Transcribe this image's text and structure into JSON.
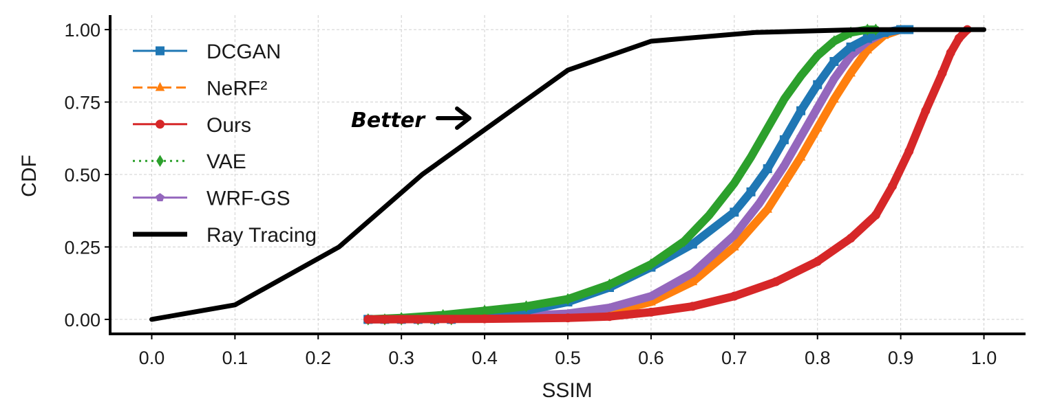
{
  "chart_data": {
    "type": "line",
    "title": "",
    "xlabel": "SSIM",
    "ylabel": "CDF",
    "xlim": [
      -0.05,
      1.05
    ],
    "ylim": [
      -0.05,
      1.05
    ],
    "grid": true,
    "legend_position": "top-left",
    "x_ticks": [
      "0.0",
      "0.1",
      "0.2",
      "0.3",
      "0.4",
      "0.5",
      "0.6",
      "0.7",
      "0.8",
      "0.9",
      "1.0"
    ],
    "y_ticks": [
      "0.00",
      "0.25",
      "0.50",
      "0.75",
      "1.00"
    ],
    "annotation": {
      "text": "Better",
      "x": 0.32,
      "y": 0.7,
      "arrow": "right"
    },
    "series": [
      {
        "name": "DCGAN",
        "color": "#1f77b4",
        "marker": "square",
        "style": "solid",
        "x": [
          0.26,
          0.35,
          0.4,
          0.45,
          0.5,
          0.55,
          0.6,
          0.65,
          0.7,
          0.72,
          0.74,
          0.76,
          0.78,
          0.8,
          0.82,
          0.84,
          0.86,
          0.88,
          0.9,
          0.91
        ],
        "y": [
          0.0,
          0.005,
          0.01,
          0.03,
          0.06,
          0.11,
          0.18,
          0.26,
          0.37,
          0.44,
          0.52,
          0.62,
          0.72,
          0.81,
          0.89,
          0.94,
          0.97,
          0.99,
          1.0,
          1.0
        ]
      },
      {
        "name": "NeRF²",
        "color": "#ff7f0e",
        "marker": "triangle",
        "style": "dashed",
        "x": [
          0.26,
          0.4,
          0.5,
          0.55,
          0.6,
          0.65,
          0.7,
          0.74,
          0.76,
          0.78,
          0.8,
          0.82,
          0.84,
          0.86,
          0.88,
          0.9
        ],
        "y": [
          0.0,
          0.003,
          0.01,
          0.025,
          0.06,
          0.13,
          0.25,
          0.38,
          0.47,
          0.56,
          0.66,
          0.76,
          0.85,
          0.93,
          0.98,
          1.0
        ]
      },
      {
        "name": "Ours",
        "color": "#d62728",
        "marker": "circle",
        "style": "solid",
        "x": [
          0.26,
          0.4,
          0.5,
          0.55,
          0.6,
          0.65,
          0.7,
          0.75,
          0.8,
          0.84,
          0.87,
          0.89,
          0.91,
          0.93,
          0.95,
          0.96,
          0.97,
          0.98
        ],
        "y": [
          0.0,
          0.002,
          0.005,
          0.01,
          0.025,
          0.045,
          0.08,
          0.13,
          0.2,
          0.28,
          0.36,
          0.46,
          0.58,
          0.72,
          0.85,
          0.92,
          0.97,
          1.0
        ]
      },
      {
        "name": "VAE",
        "color": "#2ca02c",
        "marker": "diamond",
        "style": "dotted",
        "x": [
          0.26,
          0.3,
          0.35,
          0.4,
          0.45,
          0.5,
          0.55,
          0.6,
          0.64,
          0.67,
          0.7,
          0.72,
          0.74,
          0.76,
          0.78,
          0.8,
          0.82,
          0.84,
          0.86,
          0.87
        ],
        "y": [
          0.0,
          0.005,
          0.015,
          0.03,
          0.045,
          0.07,
          0.12,
          0.19,
          0.27,
          0.36,
          0.47,
          0.56,
          0.66,
          0.76,
          0.84,
          0.91,
          0.96,
          0.99,
          1.0,
          1.0
        ]
      },
      {
        "name": "WRF-GS",
        "color": "#9467bd",
        "marker": "pentagon",
        "style": "solid",
        "x": [
          0.26,
          0.4,
          0.5,
          0.55,
          0.6,
          0.65,
          0.7,
          0.73,
          0.76,
          0.78,
          0.8,
          0.82,
          0.84,
          0.86,
          0.88,
          0.9
        ],
        "y": [
          0.0,
          0.005,
          0.02,
          0.04,
          0.08,
          0.16,
          0.29,
          0.4,
          0.53,
          0.63,
          0.73,
          0.83,
          0.91,
          0.96,
          0.99,
          1.0
        ]
      },
      {
        "name": "Ray Tracing",
        "color": "#000000",
        "marker": "none",
        "style": "solid",
        "x": [
          0.0,
          0.1,
          0.225,
          0.325,
          0.5,
          0.525,
          0.6,
          0.725,
          0.85,
          1.0
        ],
        "y": [
          0.0,
          0.05,
          0.25,
          0.5,
          0.86,
          0.885,
          0.96,
          0.99,
          1.0,
          1.0
        ]
      }
    ]
  }
}
